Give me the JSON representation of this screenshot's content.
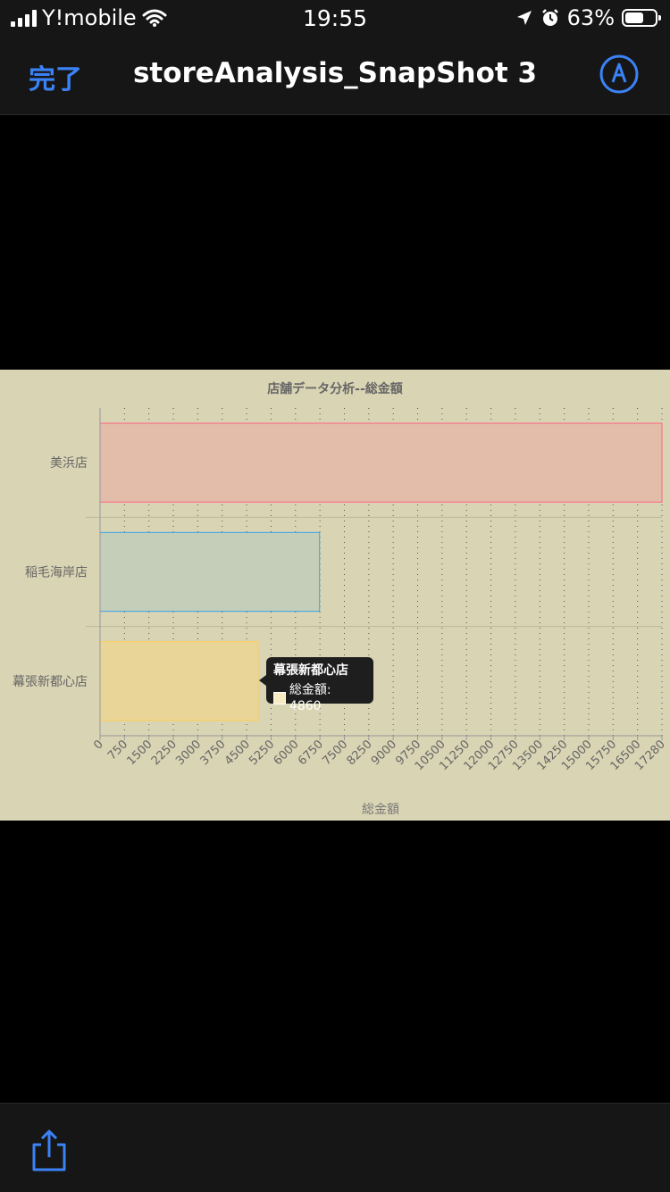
{
  "status_bar": {
    "carrier": "Y!mobile",
    "time": "19:55",
    "battery": "63%",
    "battery_level": 0.63
  },
  "nav": {
    "done_label": "完了",
    "title": "storeAnalysis_SnapShot 3"
  },
  "chart_data": {
    "type": "bar",
    "orientation": "horizontal",
    "title": "店舗データ分析--総金額",
    "xlabel": "総金額",
    "ylabel": "",
    "categories": [
      "美浜店",
      "稲毛海岸店",
      "幕張新都心店"
    ],
    "values": [
      17280,
      6750,
      4860
    ],
    "xlim": [
      0,
      17280
    ],
    "x_ticks": [
      "0",
      "750",
      "1500",
      "2250",
      "3000",
      "3750",
      "4500",
      "5250",
      "6000",
      "6750",
      "7500",
      "8250",
      "9000",
      "9750",
      "10500",
      "11250",
      "12000",
      "12750",
      "13500",
      "14250",
      "15000",
      "15750",
      "16500",
      "17280"
    ],
    "colors": {
      "fill": [
        "#e3bcaa",
        "#c5ceb8",
        "#e8d597"
      ],
      "stroke": [
        "#ff6384",
        "#36a2eb",
        "#ffce56"
      ]
    },
    "grid": true,
    "tooltip": {
      "title": "幕張新都心店",
      "label": "総金額: 4860"
    }
  },
  "icons": {
    "markup": "markup-icon",
    "share": "share-icon"
  }
}
